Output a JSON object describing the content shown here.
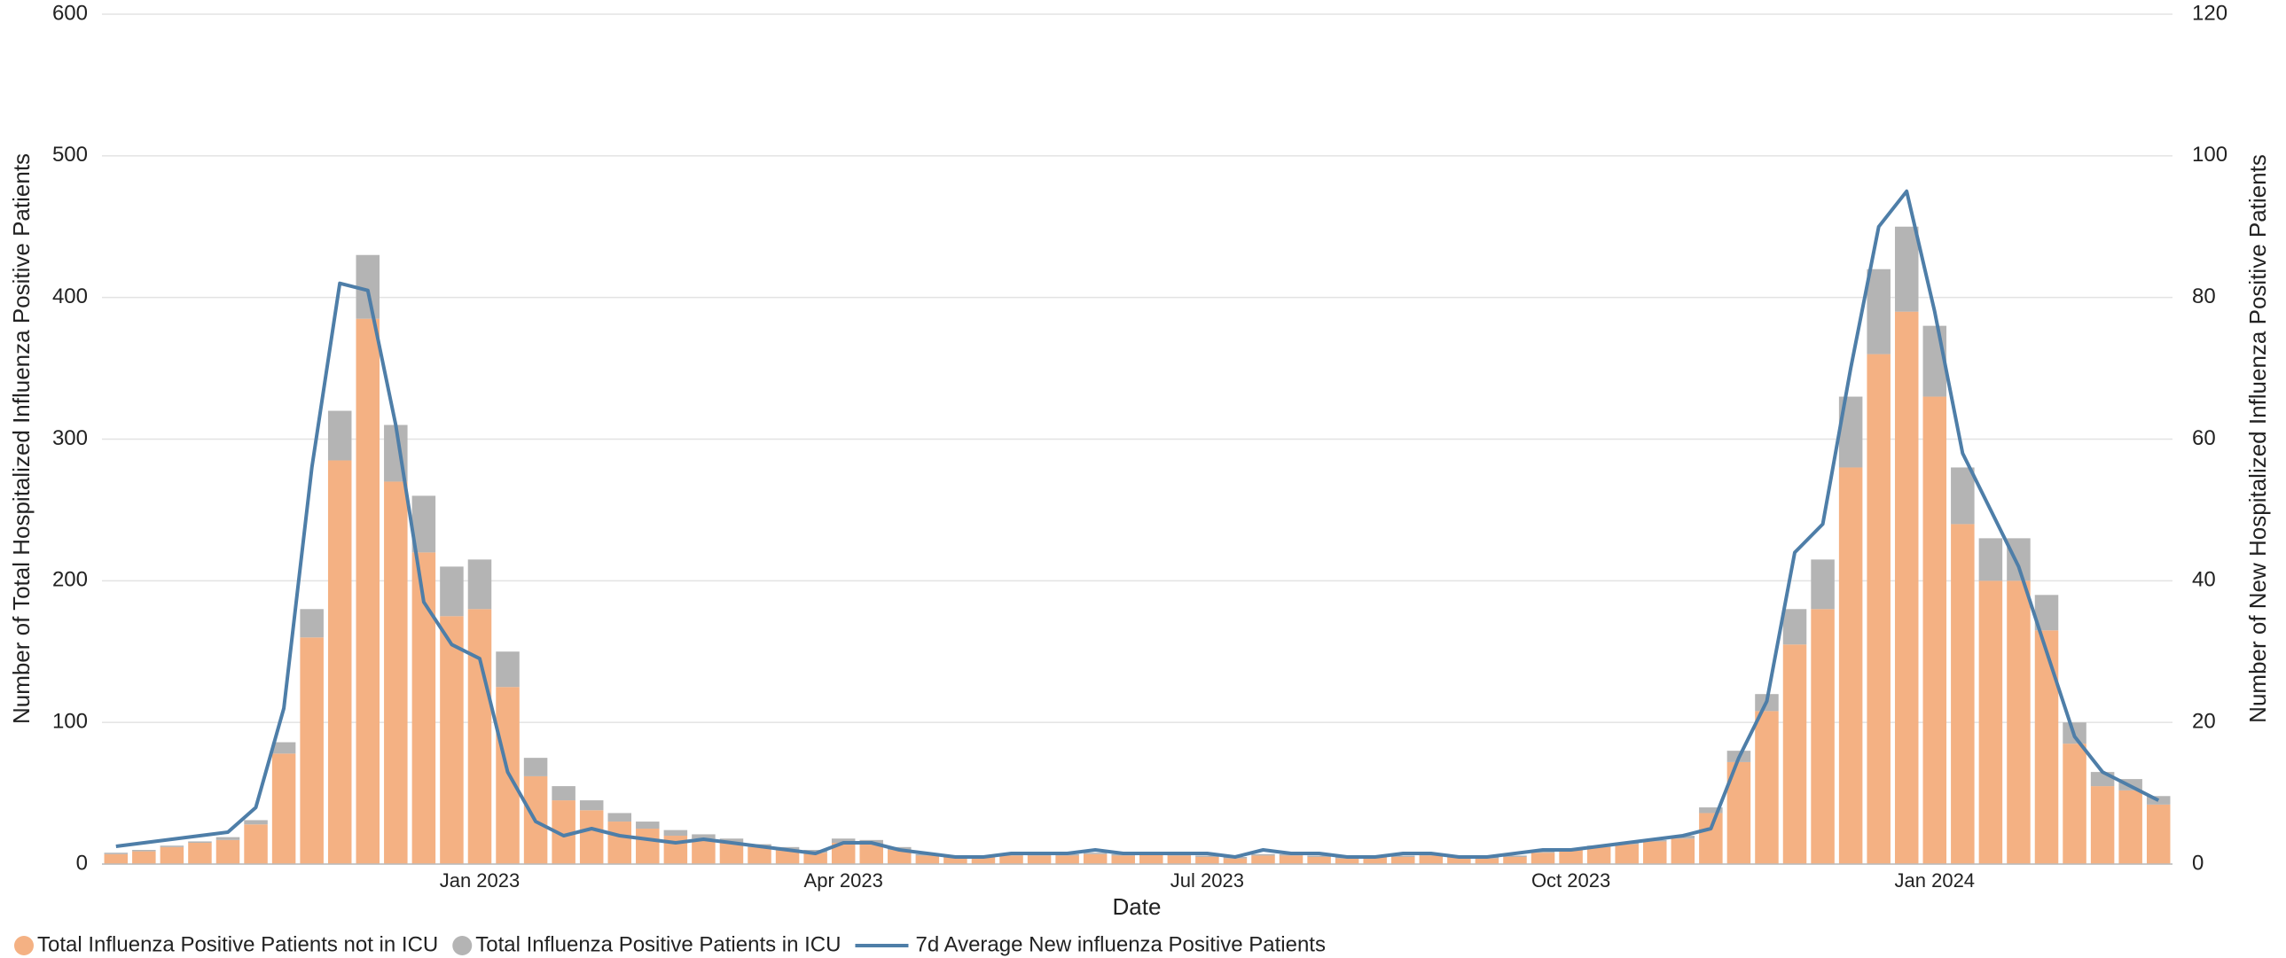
{
  "chart_data": {
    "type": "bar",
    "stacked": true,
    "grid": true,
    "legend": "bottom-left",
    "x_label": "Date",
    "y_label": "Number of Total Hospitalized Influenza Positive Patients",
    "y2_label": "Number of New Hospitalized Influenza Positive Patients",
    "categories": [
      null,
      null,
      null,
      null,
      null,
      null,
      null,
      null,
      null,
      null,
      null,
      null,
      null,
      "Jan 2023",
      null,
      null,
      null,
      null,
      null,
      null,
      null,
      null,
      null,
      null,
      null,
      null,
      "Apr 2023",
      null,
      null,
      null,
      null,
      null,
      null,
      null,
      null,
      null,
      null,
      null,
      null,
      "Jul 2023",
      null,
      null,
      null,
      null,
      null,
      null,
      null,
      null,
      null,
      null,
      null,
      null,
      "Oct 2023",
      null,
      null,
      null,
      null,
      null,
      null,
      null,
      null,
      null,
      null,
      null,
      null,
      "Jan 2024",
      null,
      null,
      null,
      null,
      null,
      null,
      null,
      null
    ],
    "ylim": [
      0,
      600
    ],
    "yticks": [
      0,
      100,
      200,
      300,
      400,
      500,
      600
    ],
    "y2lim": [
      0,
      120
    ],
    "y2ticks": [
      0,
      20,
      40,
      60,
      80,
      100,
      120
    ],
    "series": [
      {
        "name": "Total Influenza Positive Patients not in ICU",
        "type": "bar",
        "color": "#f4b183",
        "values": [
          7,
          9,
          12,
          15,
          17,
          28,
          78,
          160,
          285,
          385,
          270,
          220,
          175,
          180,
          125,
          62,
          45,
          38,
          30,
          25,
          20,
          18,
          15,
          12,
          10,
          8,
          15,
          14,
          10,
          6,
          5,
          5,
          6,
          6,
          6,
          7,
          6,
          7,
          6,
          5,
          4,
          6,
          6,
          5,
          4,
          5,
          5,
          6,
          5,
          4,
          5,
          8,
          10,
          12,
          14,
          16,
          18,
          36,
          72,
          108,
          155,
          180,
          280,
          360,
          390,
          330,
          240,
          200,
          200,
          165,
          85,
          55,
          52,
          42
        ]
      },
      {
        "name": "Total Influenza Positive Patients in ICU",
        "type": "bar",
        "color": "#b4b4b4",
        "values": [
          1,
          1,
          1,
          1,
          2,
          3,
          8,
          20,
          35,
          45,
          40,
          40,
          35,
          35,
          25,
          13,
          10,
          7,
          6,
          5,
          4,
          3,
          3,
          2,
          2,
          2,
          3,
          3,
          2,
          1,
          1,
          1,
          1,
          1,
          1,
          1,
          1,
          1,
          1,
          1,
          1,
          1,
          1,
          1,
          1,
          1,
          1,
          1,
          1,
          1,
          1,
          1,
          1,
          1,
          1,
          1,
          2,
          4,
          8,
          12,
          25,
          35,
          50,
          60,
          60,
          50,
          40,
          30,
          30,
          25,
          15,
          10,
          8,
          6
        ]
      },
      {
        "name": "7d Average New influenza Positive Patients",
        "type": "line",
        "axis": "y2",
        "color": "#4e7ea8",
        "values": [
          2.5,
          3,
          3.5,
          4,
          4.5,
          8,
          22,
          56,
          82,
          81,
          62,
          37,
          31,
          29,
          13,
          6,
          4,
          5,
          4,
          3.5,
          3,
          3.5,
          3,
          2.5,
          2,
          1.5,
          3,
          3,
          2,
          1.5,
          1,
          1,
          1.5,
          1.5,
          1.5,
          2,
          1.5,
          1.5,
          1.5,
          1.5,
          1,
          2,
          1.5,
          1.5,
          1,
          1,
          1.5,
          1.5,
          1,
          1,
          1.5,
          2,
          2,
          2.5,
          3,
          3.5,
          4,
          5,
          15,
          23,
          44,
          48,
          70,
          90,
          95,
          78,
          58,
          50,
          42,
          30,
          18,
          13,
          11,
          9
        ]
      }
    ]
  }
}
